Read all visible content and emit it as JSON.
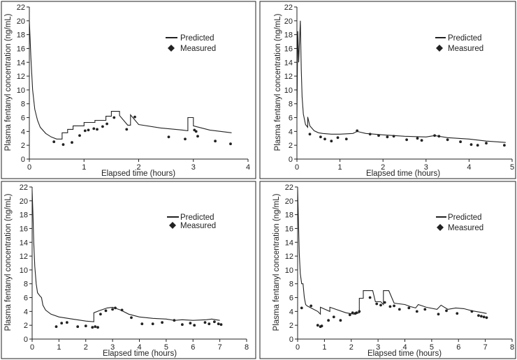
{
  "chart_data": [
    {
      "type": "line",
      "xlabel": "Elapsed time (hours)",
      "ylabel": "Plasma fentanyl concentration (ng/mL)",
      "xlim": [
        0,
        4
      ],
      "ylim": [
        0,
        22
      ],
      "xticks": [
        "0",
        "1",
        "2",
        "3",
        "4"
      ],
      "yticks": [
        "0",
        "2",
        "4",
        "6",
        "8",
        "10",
        "12",
        "14",
        "16",
        "18",
        "20",
        "22"
      ],
      "legend": [
        "Predicted",
        "Measured"
      ],
      "legend_position": "top-right",
      "series": [
        {
          "name": "Predicted",
          "style": "line",
          "x": [
            0.0,
            0.03,
            0.06,
            0.1,
            0.15,
            0.2,
            0.3,
            0.4,
            0.5,
            0.6,
            0.6,
            0.7,
            0.7,
            0.8,
            0.8,
            1.0,
            1.0,
            1.2,
            1.2,
            1.4,
            1.4,
            1.5,
            1.5,
            1.65,
            1.65,
            1.8,
            1.85,
            1.85,
            2.0,
            2.4,
            2.8,
            2.9,
            2.9,
            3.0,
            3.0,
            3.3,
            3.7
          ],
          "y": [
            20.0,
            14.5,
            10.0,
            7.2,
            5.6,
            4.6,
            3.7,
            3.2,
            2.9,
            2.9,
            3.8,
            3.8,
            4.3,
            4.3,
            4.8,
            4.8,
            5.3,
            5.3,
            5.6,
            5.6,
            6.2,
            6.2,
            6.9,
            6.9,
            6.3,
            4.9,
            4.9,
            6.4,
            5.0,
            4.5,
            4.2,
            4.1,
            6.0,
            6.0,
            4.8,
            4.2,
            3.8
          ]
        },
        {
          "name": "Measured",
          "style": "points",
          "x": [
            0.45,
            0.62,
            0.78,
            0.92,
            1.02,
            1.08,
            1.18,
            1.24,
            1.34,
            1.42,
            1.55,
            1.78,
            1.93,
            2.55,
            2.85,
            3.02,
            3.05,
            3.08,
            3.4,
            3.68
          ],
          "y": [
            2.5,
            2.1,
            2.4,
            3.4,
            4.1,
            4.2,
            4.4,
            4.3,
            4.7,
            5.1,
            6.0,
            4.3,
            6.1,
            3.2,
            2.9,
            4.2,
            4.0,
            3.3,
            2.6,
            2.2
          ]
        }
      ]
    },
    {
      "type": "line",
      "xlabel": "Elapsed time (hours)",
      "ylabel": "Plasma fentanyl concentration (ng/mL)",
      "xlim": [
        0,
        5
      ],
      "ylim": [
        0,
        22
      ],
      "xticks": [
        "0",
        "1",
        "2",
        "3",
        "4",
        "5"
      ],
      "yticks": [
        "0",
        "2",
        "4",
        "6",
        "8",
        "10",
        "12",
        "14",
        "16",
        "18",
        "20",
        "22"
      ],
      "legend": [
        "Predicted",
        "Measured"
      ],
      "legend_position": "top-right",
      "series": [
        {
          "name": "Predicted",
          "style": "line",
          "x": [
            0.0,
            0.02,
            0.04,
            0.08,
            0.1,
            0.12,
            0.15,
            0.2,
            0.25,
            0.25,
            0.3,
            0.4,
            0.5,
            0.6,
            0.8,
            1.0,
            1.3,
            1.4,
            1.6,
            2.0,
            2.5,
            3.0,
            3.2,
            3.5,
            4.0,
            4.4,
            4.85
          ],
          "y": [
            6.0,
            18.5,
            14.0,
            20.0,
            13.0,
            9.0,
            6.5,
            5.0,
            4.6,
            6.1,
            4.8,
            4.1,
            3.8,
            3.7,
            3.6,
            3.6,
            3.7,
            4.0,
            3.7,
            3.5,
            3.3,
            3.2,
            3.4,
            3.1,
            2.9,
            2.6,
            2.4
          ]
        },
        {
          "name": "Measured",
          "style": "points",
          "x": [
            0.3,
            0.55,
            0.65,
            0.8,
            0.95,
            1.15,
            1.4,
            1.7,
            1.9,
            2.1,
            2.25,
            2.55,
            2.8,
            2.9,
            3.2,
            3.3,
            3.5,
            3.8,
            4.05,
            4.2,
            4.4,
            4.82
          ],
          "y": [
            3.6,
            3.2,
            2.9,
            2.6,
            3.1,
            2.9,
            4.1,
            3.6,
            3.4,
            3.2,
            3.3,
            2.8,
            3.0,
            2.7,
            3.4,
            3.3,
            2.8,
            2.5,
            2.1,
            2.0,
            2.3,
            2.0
          ]
        }
      ]
    },
    {
      "type": "line",
      "xlabel": "Elapsed time (hours)",
      "ylabel": "Plasma fentanyl concentration (ng/mL)",
      "xlim": [
        0,
        8
      ],
      "ylim": [
        0,
        22
      ],
      "xticks": [
        "0",
        "1",
        "2",
        "3",
        "4",
        "5",
        "6",
        "7",
        "8"
      ],
      "yticks": [
        "0",
        "2",
        "4",
        "6",
        "8",
        "10",
        "12",
        "14",
        "16",
        "18",
        "20",
        "22"
      ],
      "legend": [
        "Predicted",
        "Measured"
      ],
      "legend_position": "top-right",
      "series": [
        {
          "name": "Predicted",
          "style": "line",
          "x": [
            0.0,
            0.03,
            0.06,
            0.1,
            0.15,
            0.2,
            0.3,
            0.35,
            0.4,
            0.5,
            0.7,
            1.0,
            1.5,
            2.0,
            2.3,
            2.3,
            2.5,
            2.8,
            3.0,
            3.3,
            3.6,
            4.0,
            4.5,
            5.0,
            5.3,
            5.6,
            6.0,
            6.5,
            6.7,
            7.0
          ],
          "y": [
            21.5,
            18.0,
            14.0,
            10.5,
            8.0,
            6.7,
            6.2,
            6.0,
            4.9,
            4.2,
            3.6,
            3.2,
            2.9,
            2.6,
            2.5,
            3.8,
            4.1,
            4.5,
            4.6,
            4.2,
            3.6,
            3.2,
            3.0,
            2.9,
            2.7,
            2.8,
            2.7,
            2.8,
            2.9,
            2.7
          ]
        },
        {
          "name": "Measured",
          "style": "points",
          "x": [
            0.9,
            1.1,
            1.3,
            1.7,
            2.0,
            2.25,
            2.35,
            2.45,
            2.55,
            2.75,
            3.0,
            3.1,
            3.35,
            3.7,
            4.1,
            4.5,
            4.85,
            5.3,
            5.6,
            5.9,
            6.05,
            6.45,
            6.6,
            6.8,
            6.95,
            7.05
          ],
          "y": [
            1.8,
            2.3,
            2.4,
            1.8,
            1.9,
            1.7,
            1.8,
            1.7,
            3.6,
            4.1,
            4.3,
            4.5,
            4.2,
            3.1,
            2.2,
            2.2,
            2.4,
            2.7,
            2.1,
            2.3,
            2.0,
            2.4,
            2.2,
            2.5,
            2.2,
            2.1
          ]
        }
      ]
    },
    {
      "type": "line",
      "xlabel": "Elapsed time (hours)",
      "ylabel": "Plasma fentanyl concentration (ng/mL)",
      "xlim": [
        0,
        8
      ],
      "ylim": [
        0,
        22
      ],
      "xticks": [
        "0",
        "1",
        "2",
        "3",
        "4",
        "5",
        "6",
        "7",
        "8"
      ],
      "yticks": [
        "0",
        "2",
        "4",
        "6",
        "8",
        "10",
        "12",
        "14",
        "16",
        "18",
        "20",
        "22"
      ],
      "legend": [
        "Predicted",
        "Measured"
      ],
      "legend_position": "top-right",
      "series": [
        {
          "name": "Predicted",
          "style": "line",
          "x": [
            0.0,
            0.03,
            0.06,
            0.1,
            0.15,
            0.2,
            0.25,
            0.3,
            0.35,
            0.5,
            0.75,
            0.85,
            0.85,
            1.2,
            1.2,
            1.8,
            2.1,
            2.3,
            2.3,
            2.45,
            2.45,
            2.8,
            2.9,
            3.1,
            3.2,
            3.2,
            3.4,
            3.6,
            4.0,
            4.2,
            4.4,
            4.5,
            4.8,
            5.2,
            5.35,
            5.6,
            5.9,
            6.2,
            6.5,
            6.8,
            7.05
          ],
          "y": [
            21.8,
            17.0,
            12.5,
            9.5,
            8.0,
            8.0,
            6.0,
            5.0,
            4.8,
            4.5,
            4.0,
            3.6,
            4.6,
            4.0,
            4.6,
            3.8,
            3.6,
            3.8,
            5.9,
            5.9,
            7.0,
            7.0,
            5.4,
            5.4,
            5.0,
            7.0,
            7.0,
            5.2,
            5.0,
            4.7,
            4.5,
            5.0,
            4.6,
            4.3,
            4.9,
            4.3,
            4.5,
            4.4,
            4.1,
            3.9,
            3.7
          ]
        },
        {
          "name": "Measured",
          "style": "points",
          "x": [
            0.15,
            0.5,
            0.75,
            0.85,
            0.9,
            1.15,
            1.35,
            1.6,
            1.95,
            2.05,
            2.15,
            2.2,
            2.3,
            2.7,
            2.95,
            3.1,
            3.25,
            3.45,
            3.6,
            3.8,
            4.15,
            4.45,
            4.75,
            5.25,
            5.55,
            5.95,
            6.5,
            6.75,
            6.85,
            6.95,
            7.05
          ],
          "y": [
            4.5,
            4.8,
            2.0,
            1.8,
            1.9,
            2.7,
            3.2,
            2.7,
            3.5,
            3.8,
            3.7,
            3.8,
            4.0,
            6.0,
            5.1,
            4.9,
            5.3,
            4.7,
            4.8,
            4.3,
            4.5,
            4.0,
            4.3,
            3.6,
            4.1,
            3.7,
            4.0,
            3.4,
            3.3,
            3.2,
            3.1
          ]
        }
      ]
    }
  ]
}
